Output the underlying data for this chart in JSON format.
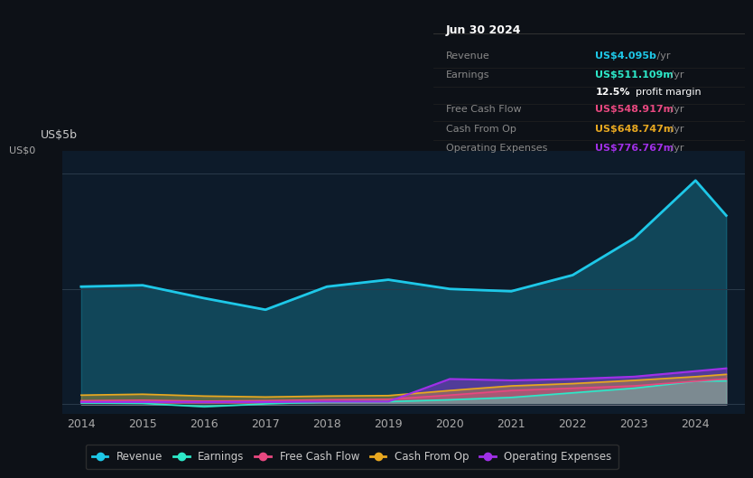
{
  "bg_color": "#0d1117",
  "plot_bg_color": "#0d1b2a",
  "title": "Jun 30 2024",
  "ylabel": "US$5b",
  "ylabel_zero": "US$0",
  "x_years": [
    2014,
    2015,
    2016,
    2017,
    2018,
    2019,
    2020,
    2021,
    2022,
    2023,
    2024,
    2024.5
  ],
  "revenue": [
    2.55,
    2.58,
    2.3,
    2.05,
    2.55,
    2.7,
    2.5,
    2.45,
    2.8,
    3.6,
    4.85,
    4.09
  ],
  "earnings": [
    0.03,
    0.02,
    -0.05,
    0.01,
    0.05,
    0.06,
    0.1,
    0.15,
    0.25,
    0.35,
    0.5,
    0.51
  ],
  "free_cash_flow": [
    0.08,
    0.09,
    0.07,
    0.08,
    0.1,
    0.11,
    0.2,
    0.3,
    0.35,
    0.4,
    0.5,
    0.55
  ],
  "cash_from_op": [
    0.2,
    0.22,
    0.18,
    0.16,
    0.18,
    0.19,
    0.3,
    0.4,
    0.45,
    0.52,
    0.6,
    0.65
  ],
  "operating_expenses": [
    0.05,
    0.05,
    0.05,
    0.05,
    0.06,
    0.06,
    0.55,
    0.52,
    0.55,
    0.6,
    0.72,
    0.78
  ],
  "revenue_color": "#1ec8e8",
  "earnings_color": "#2de8c8",
  "free_cash_flow_color": "#e84880",
  "cash_from_op_color": "#e8a820",
  "operating_expenses_color": "#a030e8",
  "legend_labels": [
    "Revenue",
    "Earnings",
    "Free Cash Flow",
    "Cash From Op",
    "Operating Expenses"
  ],
  "tooltip": {
    "title": "Jun 30 2024",
    "rows": [
      {
        "label": "Revenue",
        "value": "US$4.095b /yr",
        "color": "#1ec8e8"
      },
      {
        "label": "Earnings",
        "value": "US$511.109m /yr",
        "color": "#2de8c8"
      },
      {
        "label": "",
        "value": "12.5% profit margin",
        "color": "#ffffff"
      },
      {
        "label": "Free Cash Flow",
        "value": "US$548.917m /yr",
        "color": "#e84880"
      },
      {
        "label": "Cash From Op",
        "value": "US$648.747m /yr",
        "color": "#e8a820"
      },
      {
        "label": "Operating Expenses",
        "value": "US$776.767m /yr",
        "color": "#a030e8"
      }
    ]
  }
}
